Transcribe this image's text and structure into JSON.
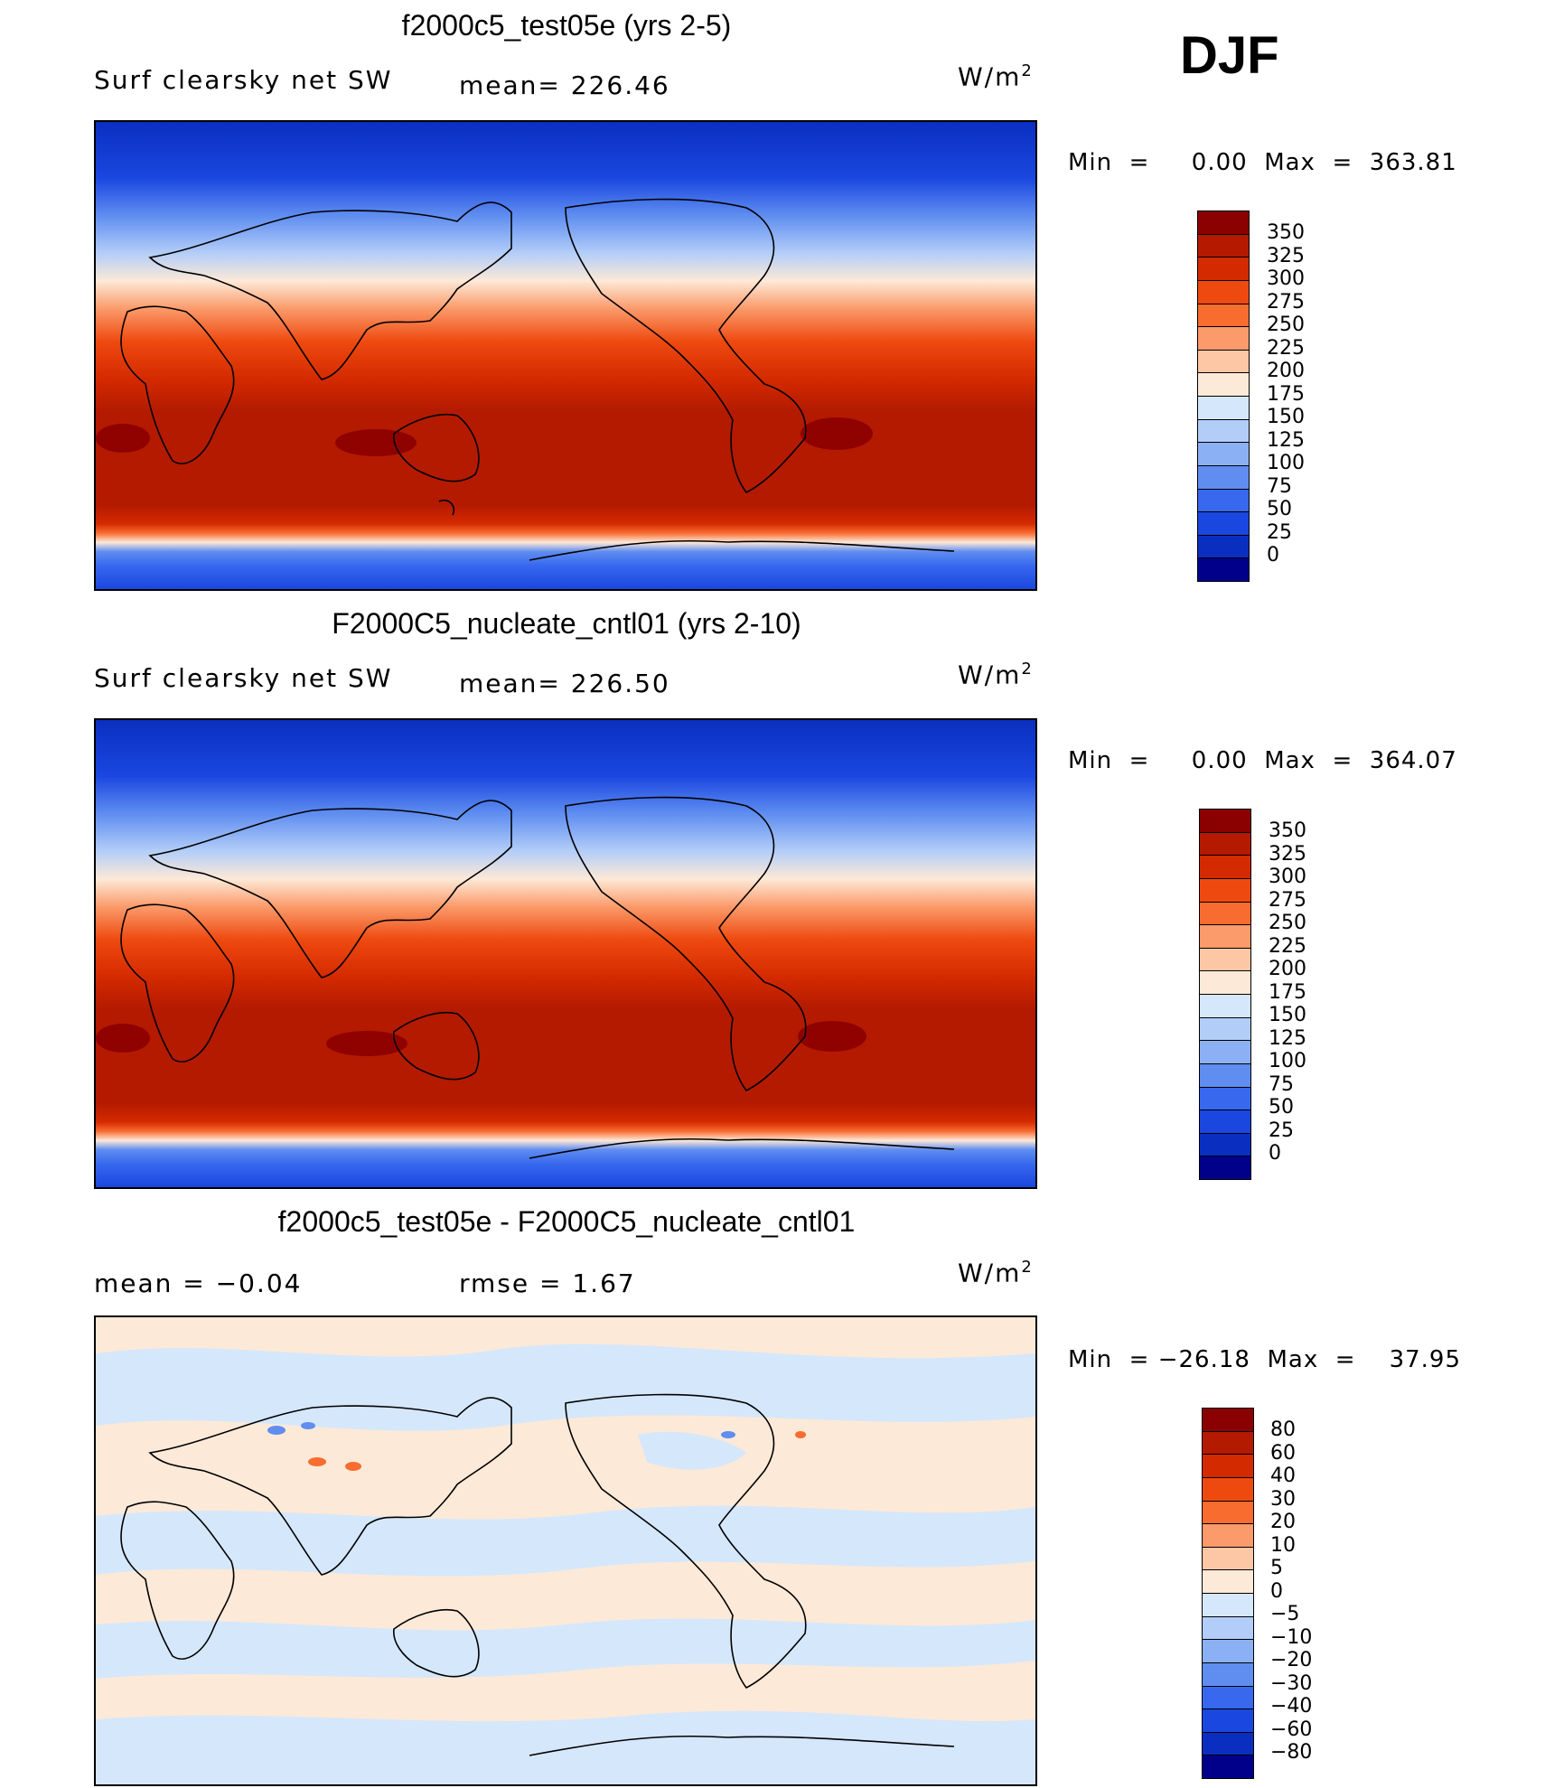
{
  "season": "DJF",
  "units_label": "W/m",
  "units_sup": "2",
  "panels": [
    {
      "title": "f2000c5_test05e (yrs 2-5)",
      "left_label": "Surf  clearsky  net  SW",
      "center_label": "mean=  226.46",
      "minmax": "Min  =     0.00  Max  =  363.81",
      "colorbar_ticks": [
        "350",
        "325",
        "300",
        "275",
        "250",
        "225",
        "200",
        "175",
        "150",
        "125",
        "100",
        "75",
        "50",
        "25",
        "0"
      ],
      "colors": [
        "#8b0000",
        "#b31a00",
        "#d42a00",
        "#ee4a10",
        "#f86c30",
        "#fb9a6a",
        "#fdc7a5",
        "#fde9d8",
        "#d5e7fb",
        "#b2cdf8",
        "#8cb0f4",
        "#5f8df0",
        "#3768ee",
        "#1a47e0",
        "#0a2fc0",
        "#00008b"
      ]
    },
    {
      "title": "F2000C5_nucleate_cntl01 (yrs 2-10)",
      "left_label": "Surf  clearsky  net  SW",
      "center_label": "mean=  226.50",
      "minmax": "Min  =     0.00  Max  =  364.07",
      "colorbar_ticks": [
        "350",
        "325",
        "300",
        "275",
        "250",
        "225",
        "200",
        "175",
        "150",
        "125",
        "100",
        "75",
        "50",
        "25",
        "0"
      ],
      "colors": [
        "#8b0000",
        "#b31a00",
        "#d42a00",
        "#ee4a10",
        "#f86c30",
        "#fb9a6a",
        "#fdc7a5",
        "#fde9d8",
        "#d5e7fb",
        "#b2cdf8",
        "#8cb0f4",
        "#5f8df0",
        "#3768ee",
        "#1a47e0",
        "#0a2fc0",
        "#00008b"
      ]
    },
    {
      "title": "f2000c5_test05e - F2000C5_nucleate_cntl01",
      "left_label": "mean  =    −0.04",
      "center_label": "rmse  =     1.67",
      "minmax": "Min  = −26.18  Max  =    37.95",
      "colorbar_ticks": [
        "80",
        "60",
        "40",
        "30",
        "20",
        "10",
        "5",
        "0",
        "−5",
        "−10",
        "−20",
        "−30",
        "−40",
        "−60",
        "−80"
      ],
      "colors": [
        "#8b0000",
        "#b31a00",
        "#d42a00",
        "#ee4a10",
        "#f86c30",
        "#fb9a6a",
        "#fdc7a5",
        "#fde9d8",
        "#d5e7fb",
        "#b2cdf8",
        "#8cb0f4",
        "#5f8df0",
        "#3768ee",
        "#1a47e0",
        "#0a2fc0",
        "#00008b"
      ]
    }
  ]
}
